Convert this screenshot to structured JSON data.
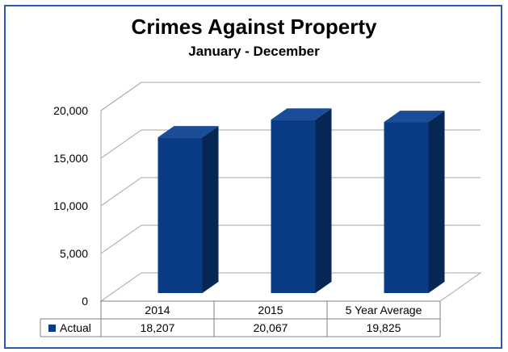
{
  "chart_data": {
    "type": "bar",
    "title": "Crimes Against Property",
    "subtitle": "January - December",
    "categories": [
      "2014",
      "2015",
      "5 Year Average"
    ],
    "series": [
      {
        "name": "Actual",
        "values": [
          18207,
          20067,
          19825
        ],
        "labels": [
          "18,207",
          "20,067",
          "19,825"
        ]
      }
    ],
    "xlabel": "",
    "ylabel": "",
    "ylim": [
      0,
      20000
    ],
    "yticks": [
      0,
      5000,
      10000,
      15000,
      20000
    ],
    "ytick_labels": [
      "0",
      "5,000",
      "10,000",
      "15,000",
      "20,000"
    ],
    "grid": true,
    "legend": "data-table",
    "style": "3d-column",
    "colors": {
      "bar_front": "#0a3c85",
      "bar_side": "#062654",
      "bar_top": "#1a4c98",
      "frame": "#2e58a8",
      "grid": "#a6a6a6"
    }
  }
}
